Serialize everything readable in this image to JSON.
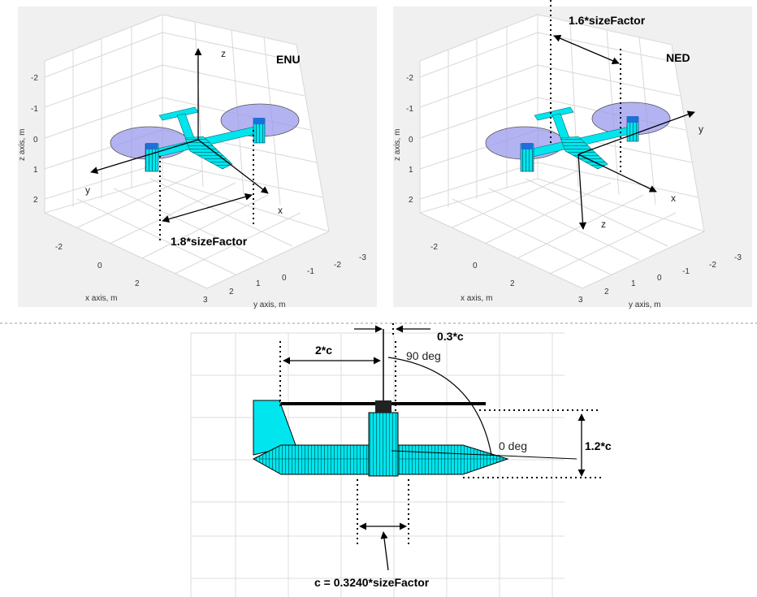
{
  "panels": {
    "enu": {
      "frame_label": "ENU",
      "x_label": "x",
      "y_label": "y",
      "z_label": "z",
      "dimension_label": "1.8*sizeFactor",
      "z_axis_title": "z axis, m",
      "x_axis_title": "x axis, m",
      "y_axis_title": "y axis, m",
      "z_ticks": [
        "-2",
        "-1",
        "0",
        "1",
        "2"
      ],
      "x_ticks": [
        "-2",
        "0",
        "2"
      ],
      "y_ticks": [
        "3",
        "2",
        "1",
        "0",
        "-1",
        "-2",
        "-3"
      ]
    },
    "ned": {
      "frame_label": "NED",
      "x_label": "x",
      "y_label": "y",
      "z_label": "z",
      "dimension_label": "1.6*sizeFactor",
      "z_axis_title": "z axis, m",
      "x_axis_title": "x axis, m",
      "y_axis_title": "y axis, m",
      "z_ticks": [
        "-2",
        "-1",
        "0",
        "1",
        "2"
      ],
      "x_ticks": [
        "-2",
        "0",
        "2"
      ],
      "y_ticks": [
        "3",
        "2",
        "1",
        "0",
        "-1",
        "-2",
        "-3"
      ]
    }
  },
  "side_view": {
    "label_0_3c": "0.3*c",
    "label_2c": "2*c",
    "label_90deg": "90 deg",
    "label_0deg": "0 deg",
    "label_1_2c": "1.2*c",
    "label_c_def": "c = 0.3240*sizeFactor"
  },
  "colors": {
    "cyan": "#00e5ee",
    "rotor_disc": "#9999ee",
    "motor_blue": "#1e6fd9",
    "panel_bg": "#f0f0f0",
    "grid": "#d8d8d8"
  }
}
